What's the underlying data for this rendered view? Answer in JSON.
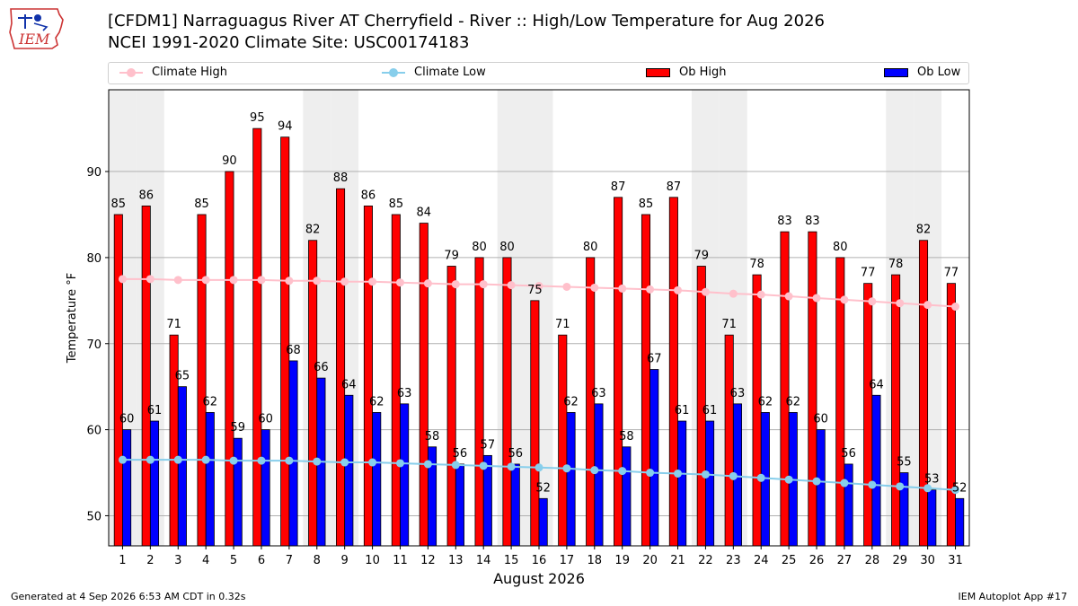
{
  "header": {
    "logo_text": "IEM",
    "title_line1": "[CFDM1] Narraguagus River  AT Cherryfield - River :: High/Low Temperature for Aug 2026",
    "title_line2": "NCEI 1991-2020 Climate Site: USC00174183"
  },
  "legend": {
    "climate_high": "Climate High",
    "climate_low": "Climate Low",
    "ob_high": "Ob High",
    "ob_low": "Ob Low"
  },
  "colors": {
    "ob_high": "#ff0000",
    "ob_low": "#0000ff",
    "climate_high": "#ffc0cb",
    "climate_low": "#87ceeb",
    "weekend_band": "#eeeeee",
    "grid": "#b0b0b0"
  },
  "footer": {
    "left": "Generated at 4 Sep 2026 6:53 AM CDT in 0.32s",
    "right": "IEM Autoplot App #17"
  },
  "chart_data": {
    "type": "bar",
    "xlabel": "August 2026",
    "ylabel": "Temperature °F",
    "ylim": [
      46.5,
      99.5
    ],
    "yticks": [
      50,
      60,
      70,
      80,
      90
    ],
    "grid": true,
    "legend_position": "top",
    "shaded_days": [
      1,
      2,
      8,
      9,
      15,
      16,
      22,
      23,
      29,
      30
    ],
    "categories": [
      "1",
      "2",
      "3",
      "4",
      "5",
      "6",
      "7",
      "8",
      "9",
      "10",
      "11",
      "12",
      "13",
      "14",
      "15",
      "16",
      "17",
      "18",
      "19",
      "20",
      "21",
      "22",
      "23",
      "24",
      "25",
      "26",
      "27",
      "28",
      "29",
      "30",
      "31"
    ],
    "series": [
      {
        "name": "Ob High",
        "type": "bar",
        "values": [
          85,
          86,
          71,
          85,
          90,
          95,
          94,
          82,
          88,
          86,
          85,
          84,
          79,
          80,
          80,
          75,
          71,
          80,
          87,
          85,
          87,
          79,
          71,
          78,
          83,
          83,
          80,
          77,
          78,
          82,
          77
        ]
      },
      {
        "name": "Ob Low",
        "type": "bar",
        "values": [
          60,
          61,
          65,
          62,
          59,
          60,
          68,
          66,
          64,
          62,
          63,
          58,
          56,
          57,
          56,
          52,
          62,
          63,
          58,
          67,
          61,
          61,
          63,
          62,
          62,
          60,
          56,
          64,
          55,
          53,
          52
        ]
      },
      {
        "name": "Climate High",
        "type": "line",
        "values": [
          77.5,
          77.5,
          77.4,
          77.4,
          77.4,
          77.4,
          77.3,
          77.3,
          77.2,
          77.2,
          77.1,
          77.0,
          76.9,
          76.9,
          76.8,
          76.7,
          76.6,
          76.5,
          76.4,
          76.3,
          76.2,
          76.0,
          75.8,
          75.7,
          75.5,
          75.3,
          75.1,
          74.9,
          74.7,
          74.5,
          74.3
        ]
      },
      {
        "name": "Climate Low",
        "type": "line",
        "values": [
          56.5,
          56.5,
          56.5,
          56.5,
          56.4,
          56.4,
          56.4,
          56.3,
          56.2,
          56.2,
          56.1,
          56.0,
          55.9,
          55.8,
          55.7,
          55.6,
          55.5,
          55.3,
          55.2,
          55.0,
          54.9,
          54.8,
          54.6,
          54.4,
          54.2,
          54.0,
          53.8,
          53.6,
          53.4,
          53.2,
          53.0
        ]
      }
    ]
  }
}
